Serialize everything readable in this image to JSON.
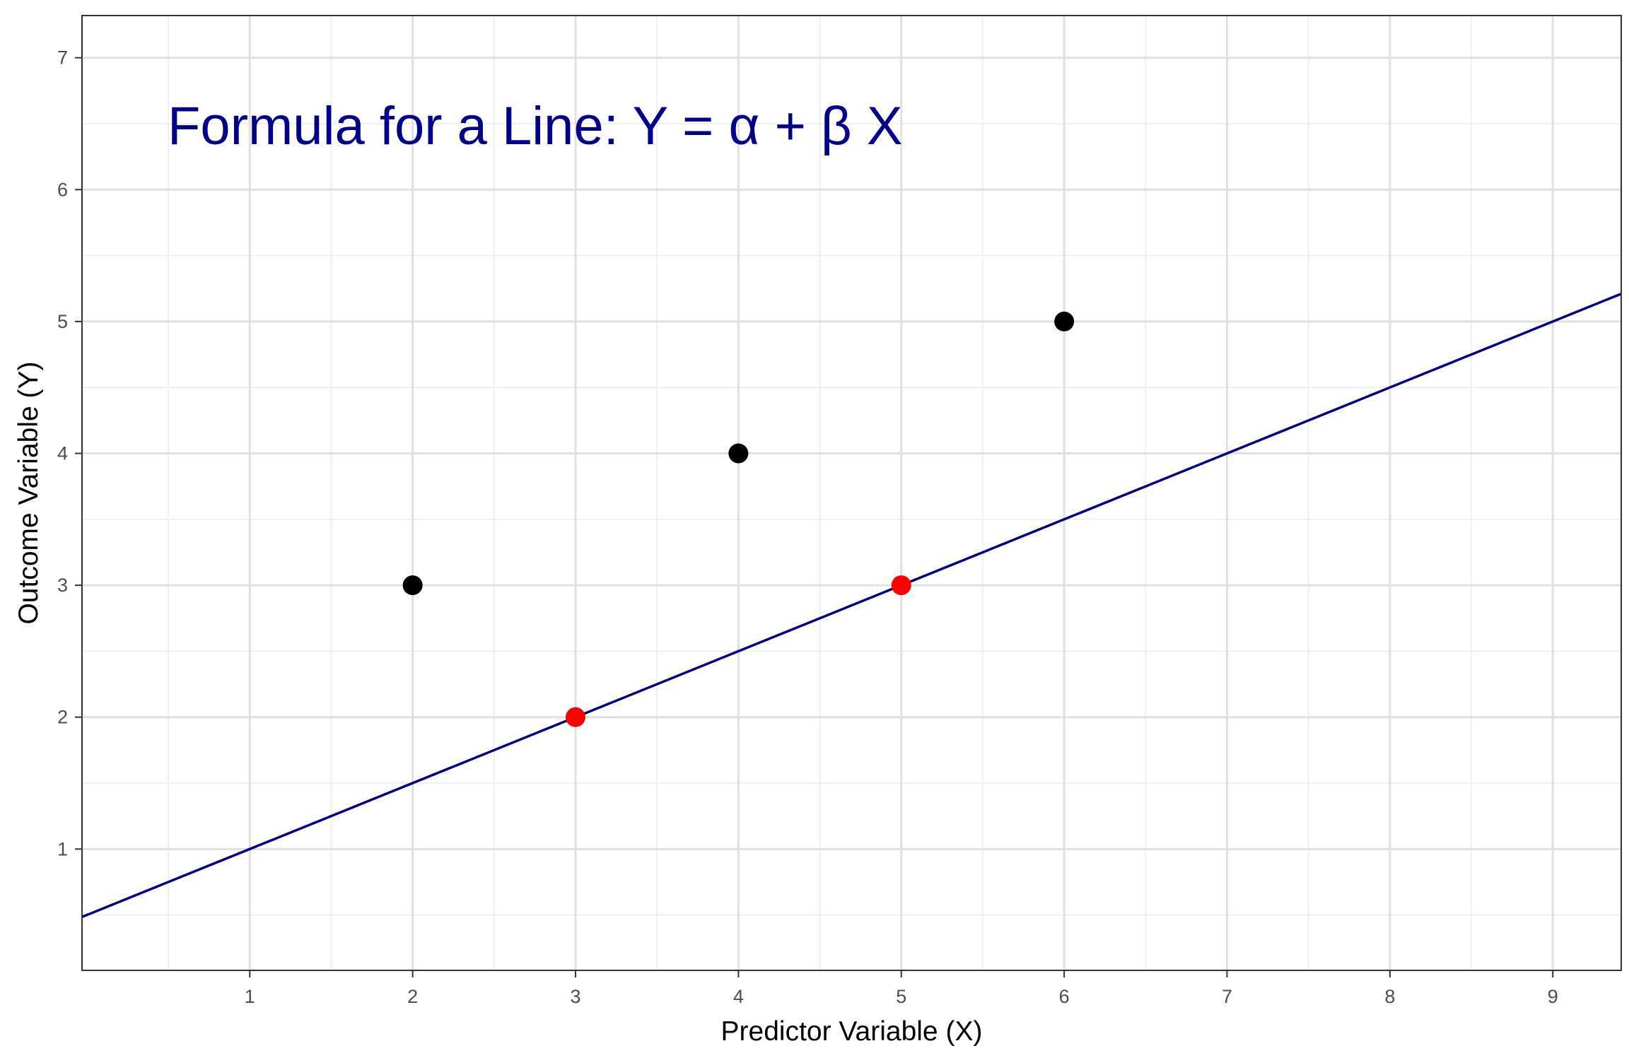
{
  "chart_data": {
    "type": "scatter",
    "xlabel": "Predictor Variable (X)",
    "ylabel": "Outcome Variable (Y)",
    "annotation": "Formula for a Line: Y = α + β X",
    "xlim": [
      -0.03,
      9.42
    ],
    "ylim": [
      0.08,
      7.32
    ],
    "x_ticks": [
      1,
      2,
      3,
      4,
      5,
      6,
      7,
      8,
      9
    ],
    "y_ticks": [
      1,
      2,
      3,
      4,
      5,
      6,
      7
    ],
    "grid": true,
    "points": [
      {
        "x": 2,
        "y": 3,
        "color": "#000000"
      },
      {
        "x": 4,
        "y": 4,
        "color": "#000000"
      },
      {
        "x": 6,
        "y": 5,
        "color": "#000000"
      },
      {
        "x": 3,
        "y": 2,
        "color": "#ff0000"
      },
      {
        "x": 5,
        "y": 3,
        "color": "#ff0000"
      }
    ],
    "line": {
      "intercept": 0.5,
      "slope": 0.5,
      "color": "#000080"
    },
    "annotation_color": "#00008b"
  }
}
